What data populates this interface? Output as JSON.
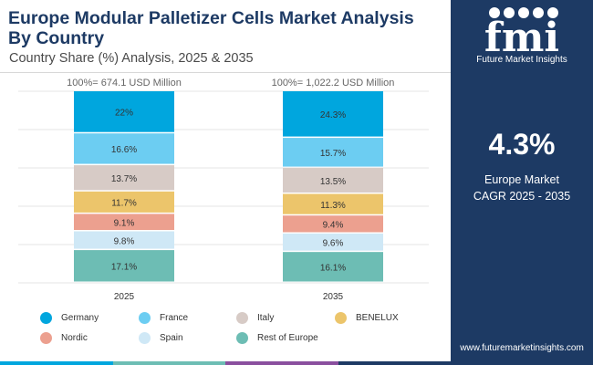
{
  "header": {
    "title": "Europe Modular Palletizer Cells Market Analysis By Country",
    "subtitle": "Country Share (%) Analysis, 2025 & 2035"
  },
  "sidebar": {
    "brand_name": "Future Market Insights",
    "logo_text": "fmi",
    "cagr_value": "4.3%",
    "cagr_label_line1": "Europe Market",
    "cagr_label_line2": "CAGR 2025 - 2035",
    "website": "www.futuremarketinsights.com"
  },
  "colors": {
    "navy": "#1d3a64",
    "Germany": "#00a6de",
    "France": "#6ccdf2",
    "Italy": "#d7cbc6",
    "BENELUX": "#ecc56b",
    "Nordic": "#eca08f",
    "Spain": "#cfe8f6",
    "Rest of Europe": "#6dbdb4",
    "bottom_bar": [
      "#00a6de",
      "#6dbdb4",
      "#8a4f9e",
      "#1d3a64"
    ]
  },
  "chart_data": {
    "type": "bar",
    "stacked": true,
    "categories": [
      "2025",
      "2035"
    ],
    "totals": [
      "100%= 674.1 USD Million",
      "100%= 1,022.2 USD Million"
    ],
    "series": [
      {
        "name": "Germany",
        "values": [
          22,
          24.3
        ],
        "labels": [
          "22%",
          "24.3%"
        ]
      },
      {
        "name": "France",
        "values": [
          16.6,
          15.7
        ],
        "labels": [
          "16.6%",
          "15.7%"
        ]
      },
      {
        "name": "Italy",
        "values": [
          13.7,
          13.5
        ],
        "labels": [
          "13.7%",
          "13.5%"
        ]
      },
      {
        "name": "BENELUX",
        "values": [
          11.7,
          11.3
        ],
        "labels": [
          "11.7%",
          "11.3%"
        ]
      },
      {
        "name": "Nordic",
        "values": [
          9.1,
          9.4
        ],
        "labels": [
          "9.1%",
          "9.4%"
        ]
      },
      {
        "name": "Spain",
        "values": [
          9.8,
          9.6
        ],
        "labels": [
          "9.8%",
          "9.6%"
        ]
      },
      {
        "name": "Rest of Europe",
        "values": [
          17.1,
          16.1
        ],
        "labels": [
          "17.1%",
          "16.1%"
        ]
      }
    ],
    "ylim": [
      0,
      100
    ],
    "grid": true,
    "legend_position": "bottom"
  }
}
